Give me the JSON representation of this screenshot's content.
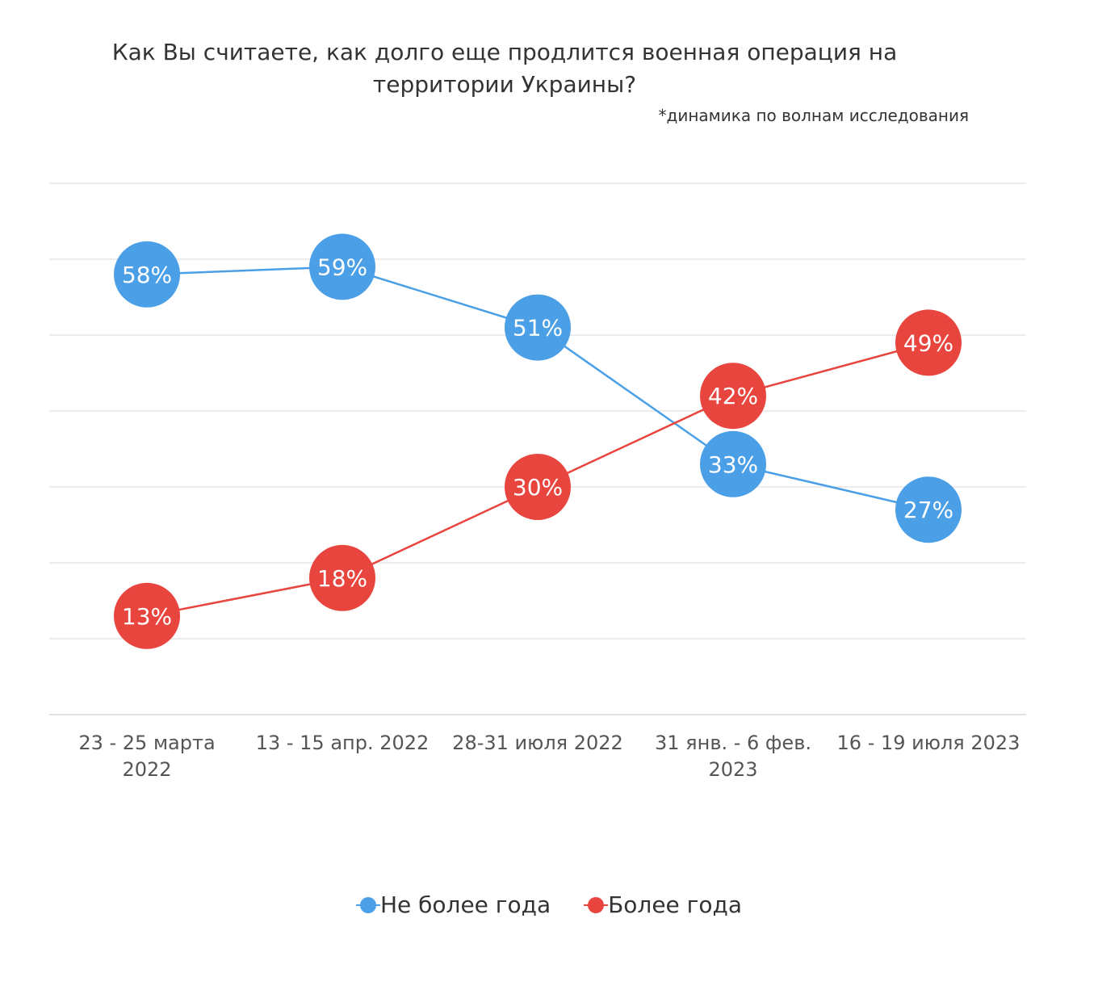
{
  "chart_data": {
    "type": "line",
    "title": "Как Вы считаете, как долго еще продлится военная операция на территории Украины?",
    "title_lines": [
      "Как Вы считаете, как долго еще продлится военная операция на",
      "территории Украины?"
    ],
    "subtitle": "*динамика по волнам исследования",
    "categories": [
      [
        "23 - 25 марта",
        "2022"
      ],
      [
        "13 - 15 апр. 2022"
      ],
      [
        "28-31 июля 2022"
      ],
      [
        "31 янв. - 6 фев.",
        "2023"
      ],
      [
        "16 - 19 июля 2023"
      ]
    ],
    "series": [
      {
        "name": "Не более года",
        "color": "#4a9fe6",
        "values": [
          58,
          59,
          51,
          33,
          27
        ],
        "labels": [
          "58%",
          "59%",
          "51%",
          "33%",
          "27%"
        ]
      },
      {
        "name": "Более года",
        "color": "#e8453e",
        "values": [
          13,
          18,
          30,
          42,
          49
        ],
        "labels": [
          "13%",
          "18%",
          "30%",
          "42%",
          "49%"
        ]
      }
    ],
    "ylim": [
      0,
      70
    ],
    "ytick_step": 10,
    "grid": true,
    "legend": "bottom-center",
    "xlabel": "",
    "ylabel": ""
  }
}
